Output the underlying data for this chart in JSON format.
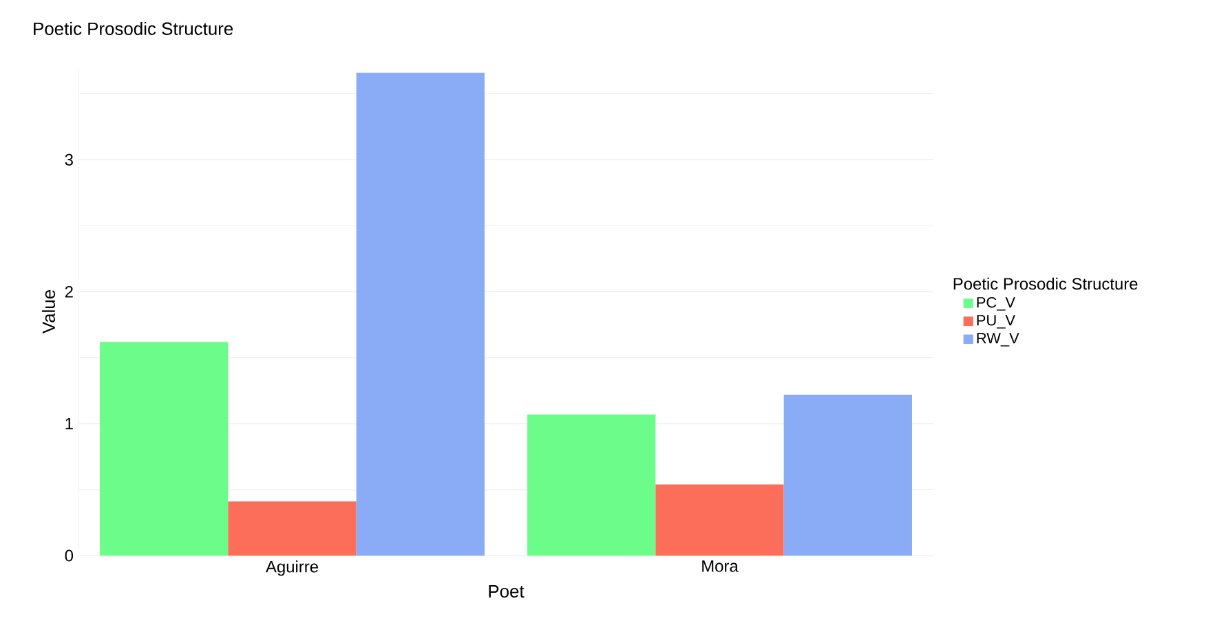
{
  "chart_data": {
    "type": "bar",
    "title": "Poetic Prosodic Structure",
    "xlabel": "Poet",
    "ylabel": "Value",
    "legend_title": "Poetic Prosodic Structure",
    "categories": [
      "Aguirre",
      "Mora"
    ],
    "series": [
      {
        "name": "PC_V",
        "color": "#6bfc8a",
        "values": [
          1.62,
          1.07
        ]
      },
      {
        "name": "PU_V",
        "color": "#fd6e5a",
        "values": [
          0.41,
          0.54
        ]
      },
      {
        "name": "RW_V",
        "color": "#8aabf5",
        "values": [
          3.66,
          1.22
        ]
      }
    ],
    "ylim": [
      0,
      3.7
    ],
    "yticks": [
      0,
      {
        "value": 0.5,
        "label": null
      },
      1,
      {
        "value": 1.5,
        "label": null
      },
      2,
      {
        "value": 2.5,
        "label": null
      },
      3,
      {
        "value": 3.5,
        "label": null
      }
    ],
    "grid": "y",
    "legend": "right"
  }
}
